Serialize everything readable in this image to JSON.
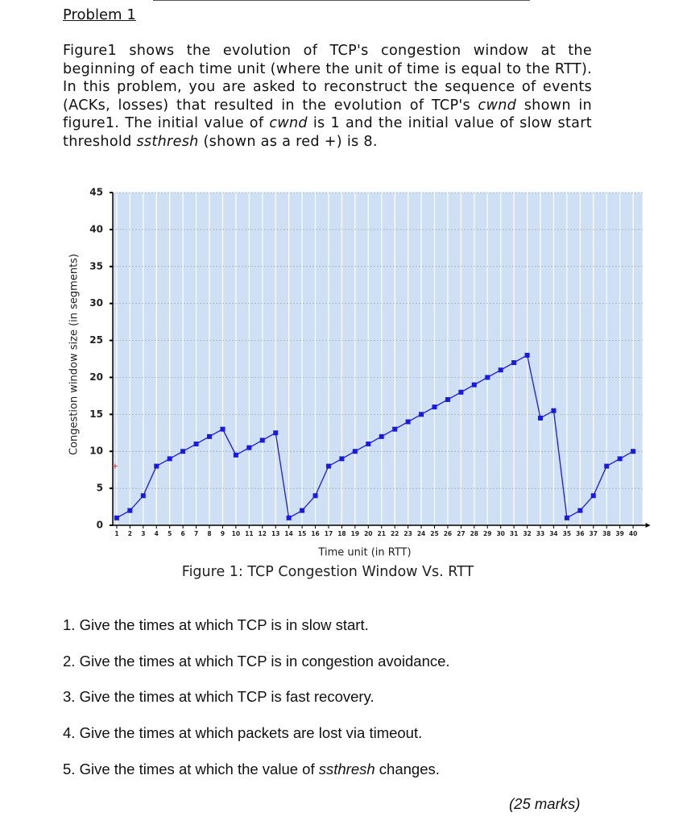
{
  "header": {
    "title": "Problem 1"
  },
  "intro": [
    {
      "text": "Figure1 shows the evolution of TCP's congestion window at the beginning of each time unit (where the unit of time is equal to the RTT). In this problem, you are asked to reconstruct the sequence of events (ACKs, losses) that resulted in the evolution of TCP's ",
      "italic": false
    },
    {
      "text": "cwnd",
      "italic": true
    },
    {
      "text": " shown in figure1.  The initial value of ",
      "italic": false
    },
    {
      "text": "cwnd",
      "italic": true
    },
    {
      "text": " is 1 and the initial value of slow start threshold ",
      "italic": false
    },
    {
      "text": "ssthresh",
      "italic": true
    },
    {
      "text": " (shown as a red +) is 8.",
      "italic": false
    }
  ],
  "chart_data": {
    "type": "line",
    "x_label": "Time unit (in RTT)",
    "y_label": "Congestion window size (in segments)",
    "caption": "Figure 1: TCP Congestion Window Vs. RTT",
    "x": [
      1,
      2,
      3,
      4,
      5,
      6,
      7,
      8,
      9,
      10,
      11,
      12,
      13,
      14,
      15,
      16,
      17,
      18,
      19,
      20,
      21,
      22,
      23,
      24,
      25,
      26,
      27,
      28,
      29,
      30,
      31,
      32,
      33,
      34,
      35,
      36,
      37,
      38,
      39,
      40
    ],
    "series": [
      {
        "color": "#1a1ae6",
        "values": [
          1,
          2,
          4,
          8,
          9,
          10,
          11,
          12,
          13,
          9.5,
          10.5,
          11.5,
          12.5,
          1,
          2,
          4,
          8,
          9,
          10,
          11,
          12,
          13,
          14,
          15,
          16,
          17,
          18,
          19,
          20,
          21,
          22,
          23,
          14.5,
          15.5,
          1,
          2,
          4,
          8,
          9,
          10
        ]
      }
    ],
    "marker_point": {
      "x": 1,
      "y": 8,
      "color": "#e03030"
    },
    "xlim": [
      0.7,
      40.7
    ],
    "ylim": [
      0,
      45
    ],
    "xticks": [
      1,
      2,
      3,
      4,
      5,
      6,
      7,
      8,
      9,
      10,
      11,
      12,
      13,
      14,
      15,
      16,
      17,
      18,
      19,
      20,
      21,
      22,
      23,
      24,
      25,
      26,
      27,
      28,
      29,
      30,
      31,
      32,
      33,
      34,
      35,
      36,
      37,
      38,
      39,
      40
    ],
    "yticks": [
      0,
      5,
      10,
      15,
      20,
      25,
      30,
      35,
      40,
      45
    ],
    "grid": true,
    "background": "#cfe0f5"
  },
  "questions": [
    [
      {
        "text": "1. Give the times at which TCP is in slow start.",
        "italic": false
      }
    ],
    [
      {
        "text": "2. Give the times at which TCP is in congestion avoidance.",
        "italic": false
      }
    ],
    [
      {
        "text": "3. Give the times at which TCP is fast recovery.",
        "italic": false
      }
    ],
    [
      {
        "text": "4. Give the times at which packets are lost via timeout.",
        "italic": false
      }
    ],
    [
      {
        "text": "5. Give the times at which the value of ",
        "italic": false
      },
      {
        "text": "ssthresh",
        "italic": true
      },
      {
        "text": " changes.",
        "italic": false
      }
    ]
  ],
  "marks": "(25 marks)"
}
